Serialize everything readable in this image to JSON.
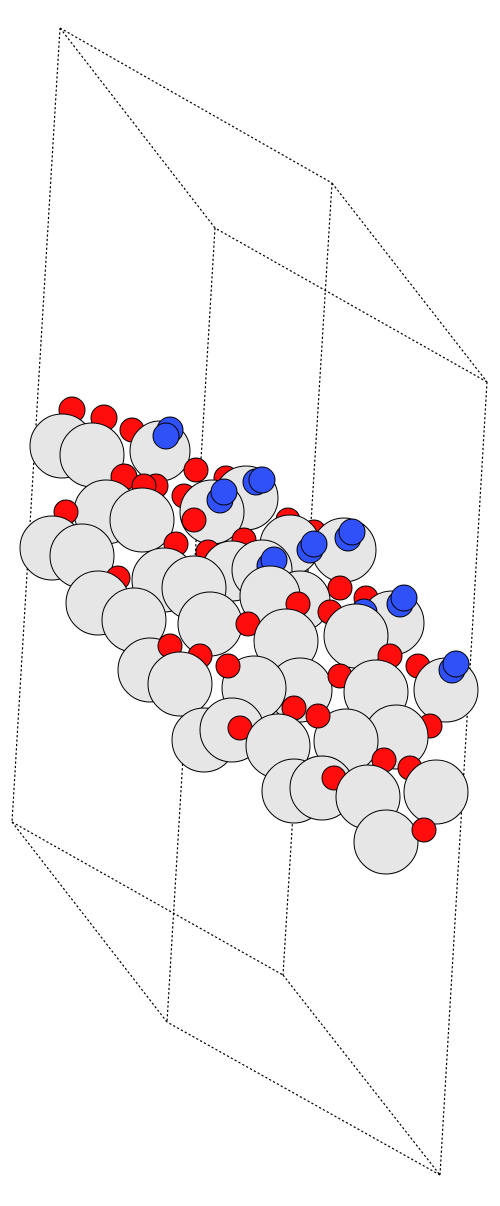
{
  "scene": {
    "name": "molecular-structure-view",
    "colors": {
      "background": "#ffffff",
      "unit_cell_line": "#000000",
      "large_atom": "#e6e6e6",
      "oxygen_atom": "#ff0d0d",
      "blue_atom": "#3050f8",
      "atom_outline": "#000000"
    },
    "atom_types": [
      "large-grey",
      "red",
      "blue"
    ]
  }
}
